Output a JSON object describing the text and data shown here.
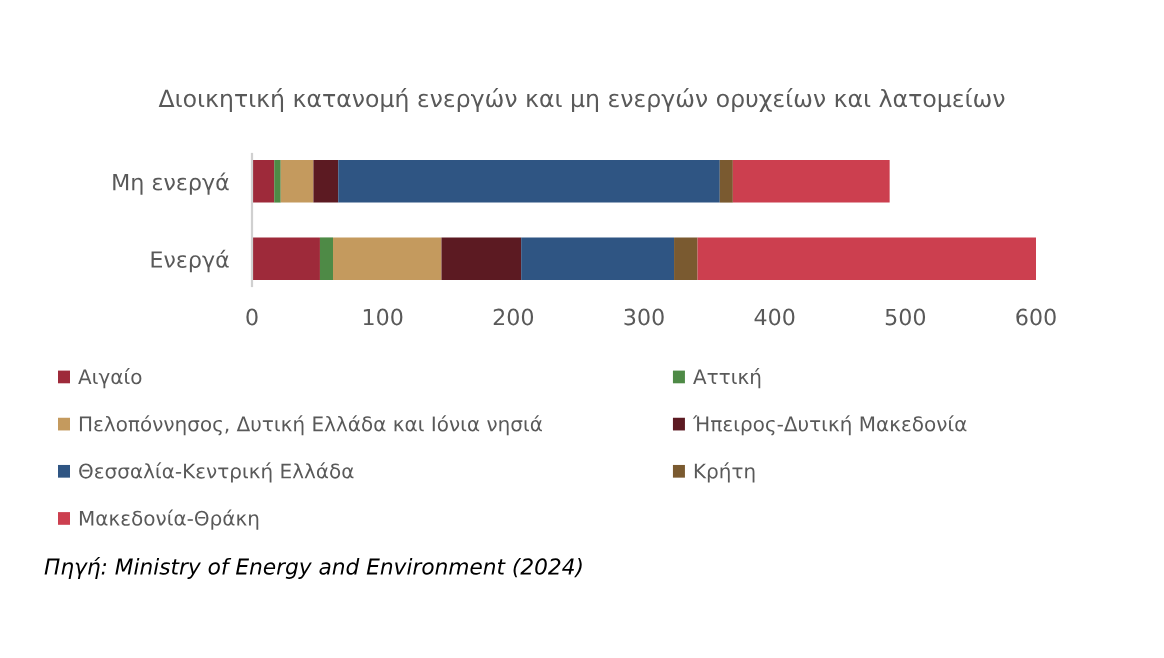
{
  "chart_data": {
    "type": "bar",
    "orientation": "horizontal",
    "stacked": true,
    "title": "Διοικητική κατανομή ενεργών και μη ενεργών ορυχείων και λατομείων",
    "categories": [
      "Μη ενεργά",
      "Ενεργά"
    ],
    "series": [
      {
        "name": "Αιγαίο",
        "color": "#9e2a3a",
        "values": [
          17,
          52
        ]
      },
      {
        "name": "Αττική",
        "color": "#4e8a46",
        "values": [
          5,
          10
        ]
      },
      {
        "name": "Πελοπόννησος, Δυτική Ελλάδα και Ιόνια νησιά",
        "color": "#c49a5e",
        "values": [
          25,
          83
        ]
      },
      {
        "name": "Ήπειρος-Δυτική Μακεδονία",
        "color": "#5c1a22",
        "values": [
          19,
          61
        ]
      },
      {
        "name": "Θεσσαλία-Κεντρική Ελλάδα",
        "color": "#2f5583",
        "values": [
          292,
          117
        ]
      },
      {
        "name": "Κρήτη",
        "color": "#7a5a30",
        "values": [
          10,
          18
        ]
      },
      {
        "name": "Μακεδονία-Θράκη",
        "color": "#cc3f4f",
        "values": [
          120,
          259
        ]
      }
    ],
    "xlim": [
      0,
      600
    ],
    "xticks": [
      0,
      100,
      200,
      300,
      400,
      500,
      600
    ],
    "grid": false,
    "legend": "bottom",
    "annotations": [
      "Πηγή: Ministry of Energy and Environment (2024)"
    ]
  }
}
